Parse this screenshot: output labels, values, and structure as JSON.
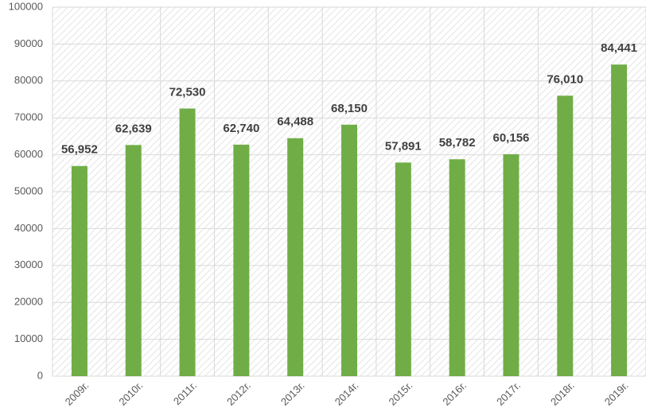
{
  "chart_data": {
    "type": "bar",
    "categories": [
      "2009г.",
      "2010г.",
      "2011г.",
      "2012г.",
      "2013г.",
      "2014г.",
      "2015г.",
      "2016г.",
      "2017г.",
      "2018г.",
      "2019г."
    ],
    "values": [
      56952,
      62639,
      72530,
      62740,
      64488,
      68150,
      57891,
      58782,
      60156,
      76010,
      84441
    ],
    "value_labels": [
      "56,952",
      "62,639",
      "72,530",
      "62,740",
      "64,488",
      "68,150",
      "57,891",
      "58,782",
      "60,156",
      "76,010",
      "84,441"
    ],
    "color": "#70ad47",
    "ylim": [
      0,
      100000
    ],
    "yticks": [
      0,
      10000,
      20000,
      30000,
      40000,
      50000,
      60000,
      70000,
      80000,
      90000,
      100000
    ],
    "grid": true
  }
}
